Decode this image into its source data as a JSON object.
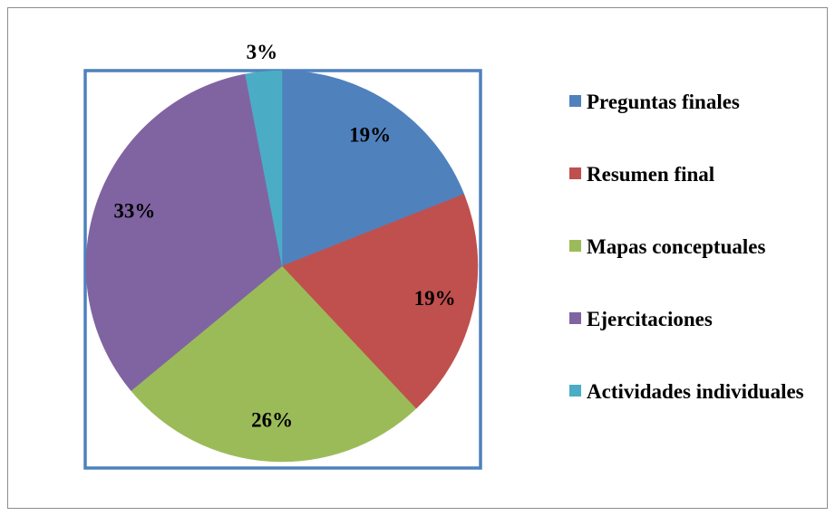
{
  "chart_data": {
    "type": "pie",
    "categories": [
      "Preguntas finales",
      "Resumen final",
      "Mapas conceptuales",
      "Ejercitaciones",
      "Actividades individuales"
    ],
    "values": [
      19,
      19,
      26,
      33,
      3
    ],
    "value_labels": [
      "19%",
      "19%",
      "26%",
      "33%",
      "3%"
    ],
    "colors": [
      "#4f81bd",
      "#c0504d",
      "#9bbb59",
      "#8064a2",
      "#4bacc6"
    ],
    "legend": "right"
  }
}
